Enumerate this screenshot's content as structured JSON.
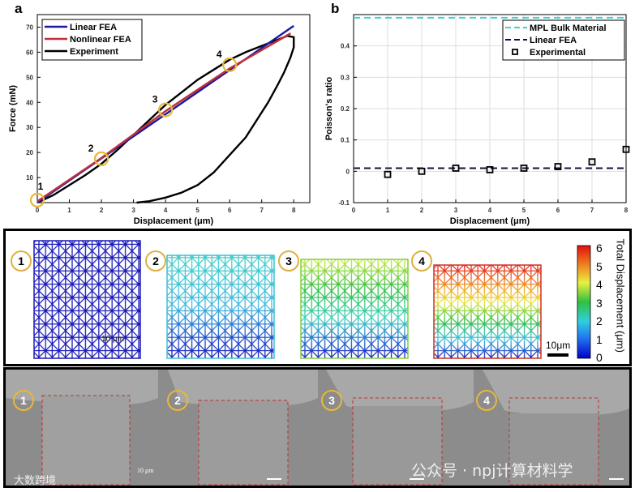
{
  "chart_data": [
    {
      "type": "line",
      "panel_label": "a",
      "xlabel": "Displacement (μm)",
      "ylabel": "Force (mN)",
      "xlim": [
        0,
        8.5
      ],
      "ylim": [
        0,
        75
      ],
      "xticks": [
        0,
        1,
        2,
        3,
        4,
        5,
        6,
        7,
        8
      ],
      "yticks": [
        10,
        20,
        30,
        40,
        50,
        60,
        70
      ],
      "legend_position": "top-left",
      "series": [
        {
          "name": "Linear FEA",
          "color": "#1a1aa0",
          "x": [
            0,
            8
          ],
          "y": [
            0,
            70.5
          ]
        },
        {
          "name": "Nonlinear FEA",
          "color": "#c0303a",
          "x": [
            0,
            2,
            4,
            6,
            7.9
          ],
          "y": [
            0.5,
            17.8,
            36.5,
            53.5,
            67.5
          ]
        },
        {
          "name": "Experiment",
          "color": "#000000",
          "x": [
            0,
            0.5,
            1,
            1.5,
            2,
            2.5,
            3,
            3.5,
            4,
            4.5,
            5,
            5.5,
            6,
            6.5,
            7,
            7.5,
            7.8,
            8,
            8,
            7.9,
            7.7,
            7.5,
            7.2,
            7,
            6.5,
            6,
            5.5,
            5,
            4.5,
            4,
            3.5,
            3.1
          ],
          "y": [
            0,
            3,
            7,
            11,
            15.5,
            21,
            27,
            33,
            39,
            44,
            49,
            53,
            57,
            60,
            62.5,
            65,
            66.5,
            66,
            62,
            58,
            52,
            47,
            40,
            36,
            26,
            19,
            12,
            7,
            4,
            2,
            0.6,
            0
          ]
        }
      ],
      "markers": [
        {
          "label": "1",
          "x": 0,
          "y": 1
        },
        {
          "label": "2",
          "x": 2,
          "y": 17.5
        },
        {
          "label": "3",
          "x": 4,
          "y": 37
        },
        {
          "label": "4",
          "x": 6,
          "y": 55
        }
      ],
      "marker_color": "#e8b838"
    },
    {
      "type": "scatter",
      "panel_label": "b",
      "xlabel": "Displacement (μm)",
      "ylabel": "Poisson's ratio",
      "xlim": [
        0,
        8
      ],
      "ylim": [
        -0.1,
        0.5
      ],
      "xticks": [
        0,
        1,
        2,
        3,
        4,
        5,
        6,
        7,
        8
      ],
      "yticks": [
        -0.1,
        0,
        0.1,
        0.2,
        0.3,
        0.4
      ],
      "grid": true,
      "legend_position": "top-right",
      "series": [
        {
          "name": "MPL Bulk Material",
          "style": "dashed",
          "color": "#40d0d0",
          "y_const": 0.49
        },
        {
          "name": "Linear FEA",
          "style": "dashed",
          "color": "#101040",
          "y_const": 0.01
        },
        {
          "name": "Experimental",
          "style": "square-marker",
          "color": "#000000",
          "x": [
            1,
            2,
            3,
            4,
            5,
            6,
            7,
            8
          ],
          "y": [
            -0.01,
            0,
            0.01,
            0.005,
            0.01,
            0.015,
            0.03,
            0.07
          ]
        }
      ]
    }
  ],
  "fem_panel": {
    "labels": [
      "1",
      "2",
      "3",
      "4"
    ],
    "colorbar_title": "Total Displacement (μm)",
    "colorbar_ticks": [
      "0",
      "1",
      "2",
      "3",
      "4",
      "5",
      "6"
    ],
    "scale_bar": "10μm",
    "inner_scale": "10 μm"
  },
  "sem_panel": {
    "labels": [
      "1",
      "2",
      "3",
      "4"
    ],
    "scale_bar": "10 μm"
  },
  "watermarks": {
    "right": "公众号 · npj计算材料学",
    "left": "大数跨境"
  }
}
